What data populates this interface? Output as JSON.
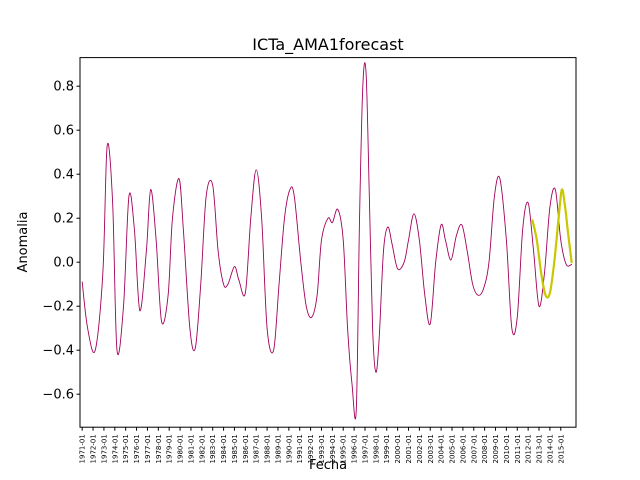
{
  "chart_data": {
    "type": "line",
    "title": "ICTa_AMA1forecast",
    "xlabel": "Fecha",
    "ylabel": "Anomalia",
    "ylim": [
      -0.75,
      0.93
    ],
    "xlim": [
      1970.8,
      2016.4
    ],
    "grid": false,
    "legend": "none",
    "y_ticks": [
      -0.6,
      -0.4,
      -0.2,
      0.0,
      0.2,
      0.4,
      0.6,
      0.8
    ],
    "y_tick_labels": [
      "−0.6",
      "−0.4",
      "−0.2",
      "0.0",
      "0.2",
      "0.4",
      "0.6",
      "0.8"
    ],
    "x_tick_values": [
      1971,
      1972,
      1973,
      1974,
      1975,
      1976,
      1977,
      1978,
      1979,
      1980,
      1981,
      1982,
      1983,
      1984,
      1985,
      1986,
      1987,
      1988,
      1989,
      1990,
      1991,
      1992,
      1993,
      1994,
      1995,
      1996,
      1997,
      1998,
      1999,
      2000,
      2001,
      2002,
      2003,
      2004,
      2005,
      2006,
      2007,
      2008,
      2009,
      2010,
      2011,
      2012,
      2013,
      2014,
      2015
    ],
    "x_tick_labels": [
      "1971-01",
      "1972-01",
      "1973-01",
      "1974-01",
      "1975-01",
      "1976-01",
      "1977-01",
      "1978-01",
      "1979-01",
      "1980-01",
      "1981-01",
      "1982-01",
      "1983-01",
      "1984-01",
      "1985-01",
      "1986-01",
      "1987-01",
      "1988-01",
      "1989-01",
      "1990-01",
      "1991-01",
      "1992-01",
      "1993-01",
      "1994-01",
      "1995-01",
      "1996-01",
      "1997-01",
      "1998-01",
      "1999-01",
      "2000-01",
      "2001-01",
      "2002-01",
      "2003-01",
      "2004-01",
      "2005-01",
      "2006-01",
      "2007-01",
      "2008-01",
      "2009-01",
      "2010-01",
      "2011-01",
      "2012-01",
      "2013-01",
      "2014-01",
      "2015-01"
    ],
    "series": [
      {
        "color": "#a3005c",
        "x": [
          1971.0,
          1971.5,
          1972.2,
          1972.9,
          1973.3,
          1973.8,
          1974.2,
          1974.8,
          1975.3,
          1975.8,
          1976.3,
          1976.9,
          1977.3,
          1977.8,
          1978.3,
          1978.9,
          1979.3,
          1979.9,
          1980.3,
          1980.9,
          1981.4,
          1981.9,
          1982.4,
          1983.0,
          1983.5,
          1984.0,
          1984.4,
          1985.0,
          1985.4,
          1986.0,
          1986.5,
          1987.0,
          1987.5,
          1988.0,
          1988.6,
          1989.1,
          1989.6,
          1990.1,
          1990.5,
          1991.1,
          1991.6,
          1992.1,
          1992.6,
          1993.0,
          1993.6,
          1994.0,
          1994.5,
          1995.0,
          1995.4,
          1995.8,
          1996.2,
          1996.5,
          1996.8,
          1997.1,
          1997.4,
          1997.7,
          1998.0,
          1998.3,
          1998.7,
          1999.1,
          1999.5,
          2000.0,
          2000.6,
          2001.0,
          2001.5,
          2002.0,
          2002.5,
          2003.0,
          2003.5,
          2004.0,
          2004.4,
          2004.9,
          2005.4,
          2005.9,
          2006.4,
          2006.9,
          2007.4,
          2007.9,
          2008.4,
          2008.9,
          2009.4,
          2010.0,
          2010.5,
          2011.0,
          2011.5,
          2012.0,
          2012.5,
          2013.0,
          2013.5,
          2014.0,
          2014.5,
          2015.0,
          2015.5,
          2016.0
        ],
        "y": [
          -0.09,
          -0.3,
          -0.4,
          -0.05,
          0.53,
          0.27,
          -0.4,
          -0.2,
          0.3,
          0.15,
          -0.22,
          0.05,
          0.33,
          0.1,
          -0.27,
          -0.15,
          0.2,
          0.38,
          0.15,
          -0.3,
          -0.39,
          -0.1,
          0.3,
          0.35,
          0.05,
          -0.1,
          -0.1,
          -0.02,
          -0.08,
          -0.14,
          0.2,
          0.42,
          0.2,
          -0.3,
          -0.4,
          -0.1,
          0.2,
          0.33,
          0.3,
          0.0,
          -0.2,
          -0.25,
          -0.15,
          0.1,
          0.2,
          0.18,
          0.24,
          0.1,
          -0.3,
          -0.55,
          -0.67,
          0.2,
          0.8,
          0.86,
          0.3,
          -0.3,
          -0.5,
          -0.35,
          0.05,
          0.16,
          0.08,
          -0.03,
          0.0,
          0.1,
          0.22,
          0.1,
          -0.15,
          -0.28,
          0.0,
          0.17,
          0.1,
          0.01,
          0.12,
          0.17,
          0.05,
          -0.1,
          -0.15,
          -0.12,
          0.0,
          0.3,
          0.38,
          0.1,
          -0.3,
          -0.25,
          0.15,
          0.27,
          0.05,
          -0.2,
          -0.05,
          0.25,
          0.33,
          0.1,
          -0.01,
          -0.01
        ]
      },
      {
        "color": "#c8c800",
        "x": [
          2012.4,
          2012.8,
          2013.2,
          2013.6,
          2014.0,
          2014.4,
          2014.8,
          2015.1,
          2015.4,
          2015.7,
          2016.0
        ],
        "y": [
          0.19,
          0.1,
          -0.05,
          -0.15,
          -0.14,
          0.0,
          0.2,
          0.33,
          0.25,
          0.12,
          0.0
        ]
      }
    ]
  }
}
